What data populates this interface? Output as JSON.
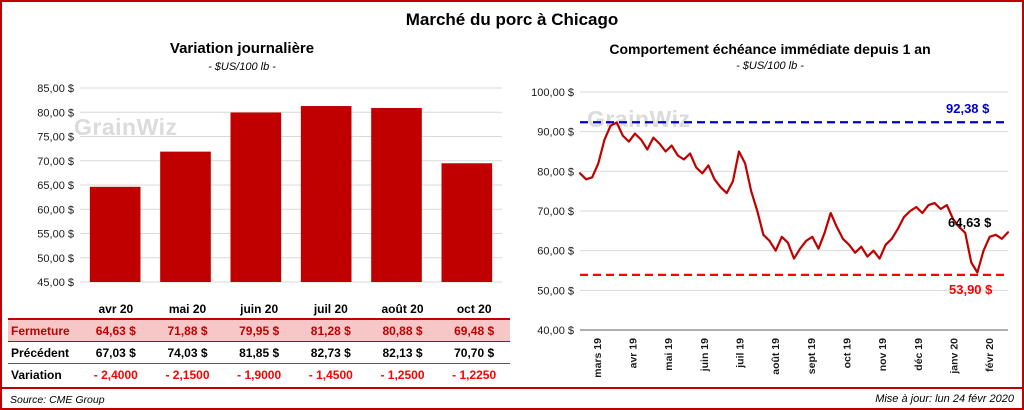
{
  "page_title": "Marché du porc à Chicago",
  "watermark": "GrainWiz",
  "colors": {
    "accent_red": "#C00000",
    "bright_red": "#FF0000",
    "high_blue": "#0000CC",
    "fermeture_row_bg": "#F7C7C7",
    "gridline": "#D9D9D9",
    "watermark_gray": "#DBDBDB"
  },
  "footer": {
    "source": "Source: CME Group",
    "updated": "Mise à jour: lun 24 févr 2020"
  },
  "chart_data": [
    {
      "type": "bar",
      "title": "Variation journalière",
      "subtitle": "- $US/100 lb -",
      "categories": [
        "avr 20",
        "mai 20",
        "juin 20",
        "juil 20",
        "août 20",
        "oct 20"
      ],
      "values": [
        64.63,
        71.88,
        79.95,
        81.28,
        80.88,
        69.48
      ],
      "ylim": [
        45,
        85
      ],
      "ytick_step": 5,
      "ytick_labels": [
        "85,00 $",
        "80,00 $",
        "75,00 $",
        "70,00 $",
        "65,00 $",
        "60,00 $",
        "55,00 $",
        "50,00 $",
        "45,00 $"
      ],
      "bar_color": "#C00000",
      "grid": true,
      "table": {
        "rows": [
          {
            "label": "Fermeture",
            "values": [
              "64,63 $",
              "71,88 $",
              "79,95 $",
              "81,28 $",
              "80,88 $",
              "69,48 $"
            ]
          },
          {
            "label": "Précédent",
            "values": [
              "67,03 $",
              "74,03 $",
              "81,85 $",
              "82,73 $",
              "82,13 $",
              "70,70 $"
            ]
          },
          {
            "label": "Variation",
            "values": [
              "- 2,4000",
              "- 2,1500",
              "- 1,9000",
              "- 1,4500",
              "- 1,2500",
              "- 1,2250"
            ]
          }
        ]
      }
    },
    {
      "type": "line",
      "title": "Comportement échéance immédiate depuis 1 an",
      "subtitle": "- $US/100 lb -",
      "x_labels": [
        "mars 19",
        "avr 19",
        "mai 19",
        "juin 19",
        "juil 19",
        "août 19",
        "sept 19",
        "oct 19",
        "nov 19",
        "déc 19",
        "janv 20",
        "févr 20"
      ],
      "values": [
        79.5,
        78.0,
        78.5,
        82.0,
        88.0,
        91.5,
        92.3,
        89.0,
        87.5,
        89.5,
        88.0,
        85.5,
        88.5,
        87.0,
        85.0,
        86.5,
        84.0,
        83.0,
        84.5,
        81.0,
        79.5,
        81.5,
        78.0,
        76.0,
        74.5,
        77.5,
        85.0,
        82.0,
        75.0,
        70.0,
        64.0,
        62.5,
        60.0,
        63.5,
        62.0,
        58.0,
        60.5,
        62.5,
        63.5,
        60.5,
        64.5,
        69.5,
        66.0,
        63.0,
        61.5,
        59.5,
        61.0,
        58.5,
        60.0,
        58.0,
        61.5,
        63.0,
        65.5,
        68.5,
        70.0,
        71.0,
        69.5,
        71.5,
        72.0,
        70.5,
        71.5,
        68.0,
        66.0,
        64.5,
        57.0,
        54.5,
        60.0,
        63.5,
        64.0,
        63.0,
        64.63
      ],
      "ylim": [
        40,
        100
      ],
      "ytick_step": 10,
      "ytick_labels": [
        "100,00 $",
        "90,00 $",
        "80,00 $",
        "70,00 $",
        "60,00 $",
        "50,00 $",
        "40,00 $"
      ],
      "line_color": "#C00000",
      "grid": true,
      "high_line": {
        "value": 92.38,
        "label": "92,38 $",
        "color": "#0000CC"
      },
      "low_line": {
        "value": 53.9,
        "label": "53,90 $",
        "color": "#FF0000"
      },
      "last_point": {
        "value": 64.63,
        "label": "64,63 $",
        "color": "#000000"
      }
    }
  ]
}
